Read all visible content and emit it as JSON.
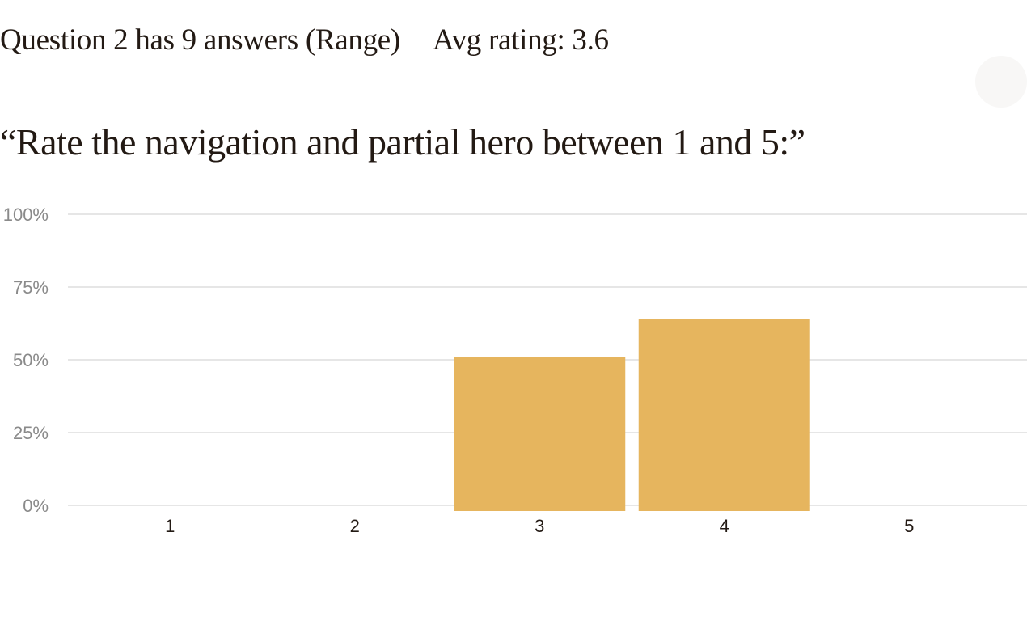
{
  "summary": {
    "answers_text": "Question 2 has 9 answers (Range)",
    "avg_text": "Avg rating: 3.6"
  },
  "question": {
    "text": "“Rate the navigation and partial hero between 1 and 5:”"
  },
  "colors": {
    "bar": "#e6b55e",
    "grid": "#dddddd",
    "tick_label": "#8a8a8a",
    "category_label": "#231a14"
  },
  "chart_data": {
    "type": "bar",
    "categories": [
      "1",
      "2",
      "3",
      "4",
      "5"
    ],
    "values": [
      0,
      0,
      51,
      64,
      0
    ],
    "ylim": [
      0,
      100
    ],
    "y_ticks": [
      {
        "value": 0,
        "label": "0%"
      },
      {
        "value": 25,
        "label": "25%"
      },
      {
        "value": 50,
        "label": "50%"
      },
      {
        "value": 75,
        "label": "75%"
      },
      {
        "value": 100,
        "label": "100%"
      }
    ],
    "grid": true,
    "legend": "none"
  }
}
